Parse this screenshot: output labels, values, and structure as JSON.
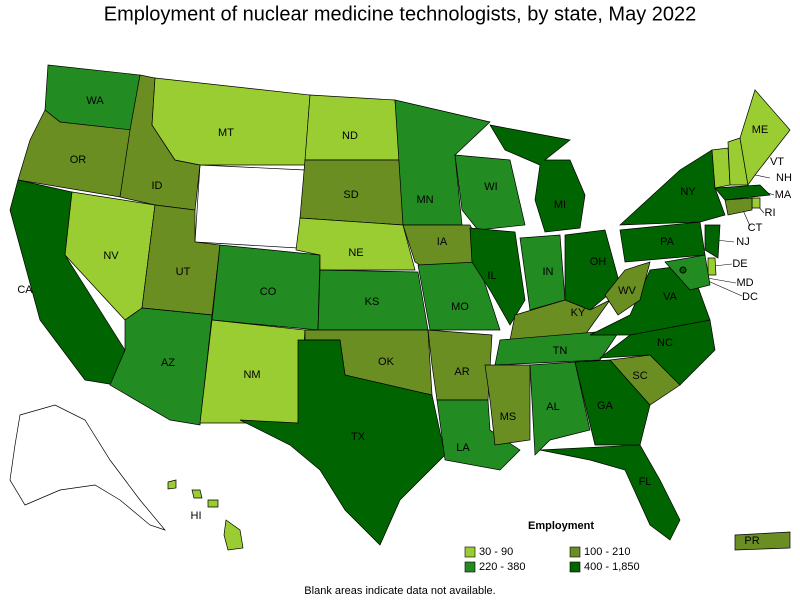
{
  "title": "Employment of nuclear medicine technologists, by state, May 2022",
  "legend": {
    "title": "Employment",
    "items": [
      {
        "label": "30 - 90",
        "color": "#9acd32"
      },
      {
        "label": "100 - 210",
        "color": "#6b8e23"
      },
      {
        "label": "220 - 380",
        "color": "#228b22"
      },
      {
        "label": "400 - 1,850",
        "color": "#006400"
      }
    ]
  },
  "note": "Blank areas indicate data not available.",
  "states": [
    {
      "label": "WA",
      "range": "220 - 380"
    },
    {
      "label": "OR",
      "range": "100 - 210"
    },
    {
      "label": "CA",
      "range": "400 - 1,850"
    },
    {
      "label": "NV",
      "range": "30 - 90"
    },
    {
      "label": "ID",
      "range": "100 - 210"
    },
    {
      "label": "MT",
      "range": "30 - 90"
    },
    {
      "label": "UT",
      "range": "100 - 210"
    },
    {
      "label": "AZ",
      "range": "220 - 380"
    },
    {
      "label": "CO",
      "range": "220 - 380"
    },
    {
      "label": "NM",
      "range": "30 - 90"
    },
    {
      "label": "ND",
      "range": "30 - 90"
    },
    {
      "label": "SD",
      "range": "100 - 210"
    },
    {
      "label": "NE",
      "range": "30 - 90"
    },
    {
      "label": "KS",
      "range": "220 - 380"
    },
    {
      "label": "OK",
      "range": "100 - 210"
    },
    {
      "label": "TX",
      "range": "400 - 1,850"
    },
    {
      "label": "MN",
      "range": "220 - 380"
    },
    {
      "label": "IA",
      "range": "100 - 210"
    },
    {
      "label": "MO",
      "range": "220 - 380"
    },
    {
      "label": "AR",
      "range": "100 - 210"
    },
    {
      "label": "LA",
      "range": "220 - 380"
    },
    {
      "label": "WI",
      "range": "220 - 380"
    },
    {
      "label": "IL",
      "range": "400 - 1,850"
    },
    {
      "label": "MI",
      "range": "400 - 1,850"
    },
    {
      "label": "IN",
      "range": "220 - 380"
    },
    {
      "label": "OH",
      "range": "400 - 1,850"
    },
    {
      "label": "KY",
      "range": "100 - 210"
    },
    {
      "label": "TN",
      "range": "220 - 380"
    },
    {
      "label": "MS",
      "range": "100 - 210"
    },
    {
      "label": "AL",
      "range": "220 - 380"
    },
    {
      "label": "GA",
      "range": "400 - 1,850"
    },
    {
      "label": "FL",
      "range": "400 - 1,850"
    },
    {
      "label": "SC",
      "range": "100 - 210"
    },
    {
      "label": "NC",
      "range": "400 - 1,850"
    },
    {
      "label": "VA",
      "range": "400 - 1,850"
    },
    {
      "label": "WV",
      "range": "100 - 210"
    },
    {
      "label": "PA",
      "range": "400 - 1,850"
    },
    {
      "label": "NY",
      "range": "400 - 1,850"
    },
    {
      "label": "VT",
      "range": "30 - 90"
    },
    {
      "label": "NH",
      "range": "30 - 90"
    },
    {
      "label": "ME",
      "range": "30 - 90"
    },
    {
      "label": "MA",
      "range": "400 - 1,850"
    },
    {
      "label": "RI",
      "range": "30 - 90"
    },
    {
      "label": "CT",
      "range": "100 - 210"
    },
    {
      "label": "NJ",
      "range": "400 - 1,850"
    },
    {
      "label": "DE",
      "range": "30 - 90"
    },
    {
      "label": "MD",
      "range": "220 - 380"
    },
    {
      "label": "DC",
      "range": "400 - 1,850"
    },
    {
      "label": "HI",
      "range": "30 - 90"
    },
    {
      "label": "PR",
      "range": "100 - 210"
    }
  ]
}
